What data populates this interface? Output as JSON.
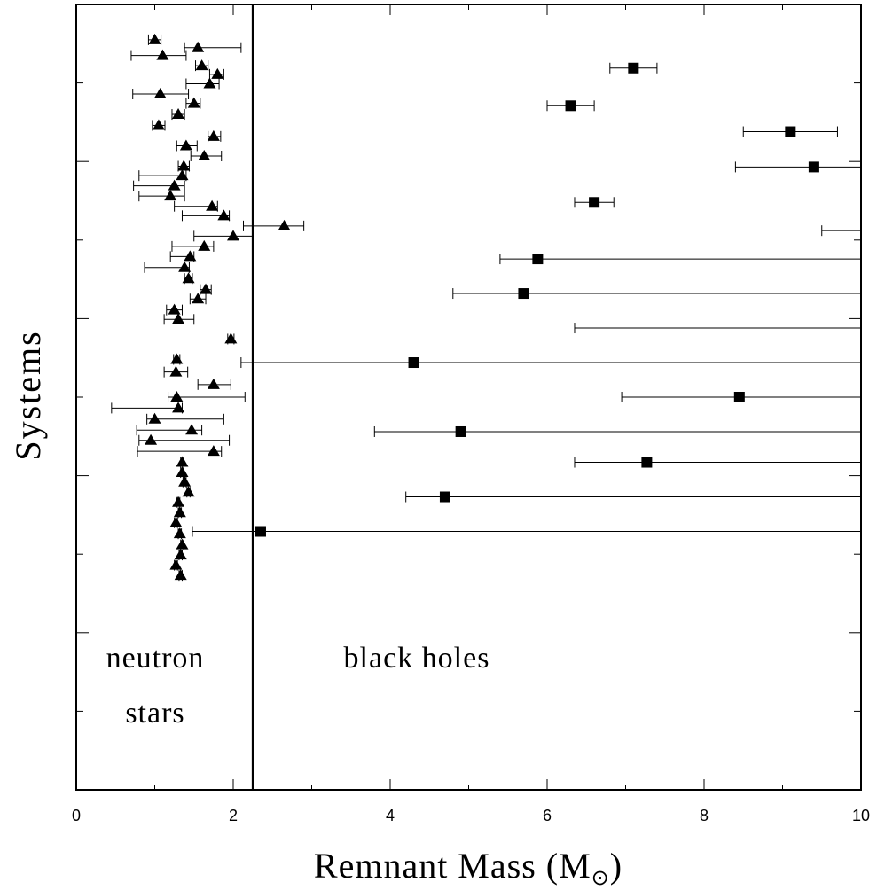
{
  "chart_data": {
    "type": "scatter",
    "xlabel": "Remnant Mass (M",
    "xlabel_symbol": "⊙",
    "xlabel_close": ")",
    "ylabel": "Systems",
    "xlim": [
      0,
      10
    ],
    "ylim": [
      0,
      50
    ],
    "x_ticks": [
      "0",
      "2",
      "4",
      "6",
      "8",
      "10"
    ],
    "y_ticks": [
      5,
      10,
      15,
      20,
      25,
      30,
      35,
      40,
      45
    ],
    "grid": false,
    "divider_x": 2.25,
    "annotations": [
      {
        "lines": [
          "neutron",
          "stars"
        ]
      },
      {
        "lines": [
          "black holes"
        ]
      }
    ],
    "series": [
      {
        "marker": "triangle",
        "points": [
          {
            "y": 47.75,
            "x": 1.0,
            "lo": 0.92,
            "hi": 1.08
          },
          {
            "y": 47.25,
            "x": 1.55,
            "lo": 1.38,
            "hi": 2.1
          },
          {
            "y": 46.75,
            "x": 1.1,
            "lo": 0.7,
            "hi": 1.4
          },
          {
            "y": 46.1,
            "x": 1.6,
            "lo": 1.52,
            "hi": 1.68
          },
          {
            "y": 45.55,
            "x": 1.8,
            "lo": 1.7,
            "hi": 1.88
          },
          {
            "y": 44.95,
            "x": 1.7,
            "lo": 1.4,
            "hi": 1.82
          },
          {
            "y": 44.3,
            "x": 1.07,
            "lo": 0.72,
            "hi": 1.43
          },
          {
            "y": 43.7,
            "x": 1.5,
            "lo": 1.4,
            "hi": 1.58
          },
          {
            "y": 43.0,
            "x": 1.3,
            "lo": 1.22,
            "hi": 1.38
          },
          {
            "y": 42.3,
            "x": 1.05,
            "lo": 0.97,
            "hi": 1.13
          },
          {
            "y": 41.6,
            "x": 1.75,
            "lo": 1.68,
            "hi": 1.84
          },
          {
            "y": 41.0,
            "x": 1.4,
            "lo": 1.28,
            "hi": 1.54
          },
          {
            "y": 40.35,
            "x": 1.63,
            "lo": 1.46,
            "hi": 1.85
          },
          {
            "y": 39.7,
            "x": 1.37,
            "lo": 1.3,
            "hi": 1.44
          },
          {
            "y": 39.1,
            "x": 1.35,
            "lo": 0.8,
            "hi": 1.4
          },
          {
            "y": 38.45,
            "x": 1.25,
            "lo": 0.73,
            "hi": 1.38
          },
          {
            "y": 37.8,
            "x": 1.2,
            "lo": 0.8,
            "hi": 1.38
          },
          {
            "y": 37.15,
            "x": 1.73,
            "lo": 1.25,
            "hi": 1.8
          },
          {
            "y": 36.55,
            "x": 1.88,
            "lo": 1.35,
            "hi": 1.95
          },
          {
            "y": 35.9,
            "x": 2.65,
            "lo": 2.13,
            "hi": 2.9
          },
          {
            "y": 35.25,
            "x": 2.0,
            "lo": 1.5,
            "hi": 2.25
          },
          {
            "y": 34.6,
            "x": 1.63,
            "lo": 1.22,
            "hi": 1.75
          },
          {
            "y": 33.95,
            "x": 1.45,
            "lo": 1.2,
            "hi": 1.5
          },
          {
            "y": 33.25,
            "x": 1.38,
            "lo": 0.87,
            "hi": 1.44
          },
          {
            "y": 32.55,
            "x": 1.43,
            "lo": 1.38,
            "hi": 1.48
          },
          {
            "y": 31.85,
            "x": 1.65,
            "lo": 1.58,
            "hi": 1.72
          },
          {
            "y": 31.25,
            "x": 1.55,
            "lo": 1.45,
            "hi": 1.65
          },
          {
            "y": 30.55,
            "x": 1.25,
            "lo": 1.15,
            "hi": 1.35
          },
          {
            "y": 29.95,
            "x": 1.3,
            "lo": 1.12,
            "hi": 1.5
          },
          {
            "y": 28.7,
            "x": 1.97,
            "lo": 1.93,
            "hi": 2.01
          },
          {
            "y": 27.4,
            "x": 1.28,
            "lo": 1.24,
            "hi": 1.32
          },
          {
            "y": 26.6,
            "x": 1.27,
            "lo": 1.12,
            "hi": 1.42
          },
          {
            "y": 25.8,
            "x": 1.75,
            "lo": 1.55,
            "hi": 1.97
          },
          {
            "y": 25.0,
            "x": 1.28,
            "lo": 1.17,
            "hi": 2.15
          },
          {
            "y": 24.3,
            "x": 1.3,
            "lo": 0.45,
            "hi": 1.35
          },
          {
            "y": 23.6,
            "x": 1.0,
            "lo": 0.9,
            "hi": 1.88
          },
          {
            "y": 22.9,
            "x": 1.47,
            "lo": 0.77,
            "hi": 1.6
          },
          {
            "y": 22.25,
            "x": 0.95,
            "lo": 0.8,
            "hi": 1.95
          },
          {
            "y": 21.55,
            "x": 1.75,
            "lo": 0.78,
            "hi": 1.85
          },
          {
            "y": 20.85,
            "x": 1.35,
            "lo": 1.33,
            "hi": 1.37
          },
          {
            "y": 20.2,
            "x": 1.35,
            "lo": 1.33,
            "hi": 1.37
          },
          {
            "y": 19.6,
            "x": 1.38,
            "lo": 1.36,
            "hi": 1.4
          },
          {
            "y": 18.95,
            "x": 1.43,
            "lo": 1.41,
            "hi": 1.45
          },
          {
            "y": 18.3,
            "x": 1.3,
            "lo": 1.28,
            "hi": 1.32
          },
          {
            "y": 17.65,
            "x": 1.32,
            "lo": 1.3,
            "hi": 1.34
          },
          {
            "y": 17.0,
            "x": 1.27,
            "lo": 1.25,
            "hi": 1.29
          },
          {
            "y": 16.3,
            "x": 1.32,
            "lo": 1.3,
            "hi": 1.34
          },
          {
            "y": 15.6,
            "x": 1.35,
            "lo": 1.33,
            "hi": 1.37
          },
          {
            "y": 14.95,
            "x": 1.33,
            "lo": 1.31,
            "hi": 1.35
          },
          {
            "y": 14.3,
            "x": 1.27,
            "lo": 1.25,
            "hi": 1.29
          },
          {
            "y": 13.65,
            "x": 1.33,
            "lo": 1.31,
            "hi": 1.35
          }
        ]
      },
      {
        "marker": "square",
        "points": [
          {
            "y": 45.95,
            "x": 7.1,
            "lo": 6.8,
            "hi": 7.4
          },
          {
            "y": 43.55,
            "x": 6.3,
            "lo": 6.0,
            "hi": 6.6
          },
          {
            "y": 41.9,
            "x": 9.1,
            "lo": 8.5,
            "hi": 9.7
          },
          {
            "y": 39.65,
            "x": 9.4,
            "lo": 8.4,
            "hi": 10.0
          },
          {
            "y": 37.4,
            "x": 6.6,
            "lo": 6.35,
            "hi": 6.85
          },
          {
            "y": 35.6,
            "x": null,
            "lo": 9.5,
            "hi": 10.0
          },
          {
            "y": 33.8,
            "x": 5.88,
            "lo": 5.4,
            "hi": 10.0
          },
          {
            "y": 31.6,
            "x": 5.7,
            "lo": 4.8,
            "hi": 10.0
          },
          {
            "y": 29.4,
            "x": null,
            "lo": 6.35,
            "hi": 10.0
          },
          {
            "y": 27.2,
            "x": 4.3,
            "lo": 2.1,
            "hi": 10.0
          },
          {
            "y": 25.0,
            "x": 8.45,
            "lo": 6.95,
            "hi": 10.0
          },
          {
            "y": 22.8,
            "x": 4.9,
            "lo": 3.8,
            "hi": 10.0
          },
          {
            "y": 20.85,
            "x": 7.27,
            "lo": 6.35,
            "hi": 10.0
          },
          {
            "y": 18.65,
            "x": 4.7,
            "lo": 4.2,
            "hi": 10.0
          },
          {
            "y": 16.45,
            "x": 2.35,
            "lo": 1.48,
            "hi": 10.0
          }
        ]
      }
    ]
  }
}
